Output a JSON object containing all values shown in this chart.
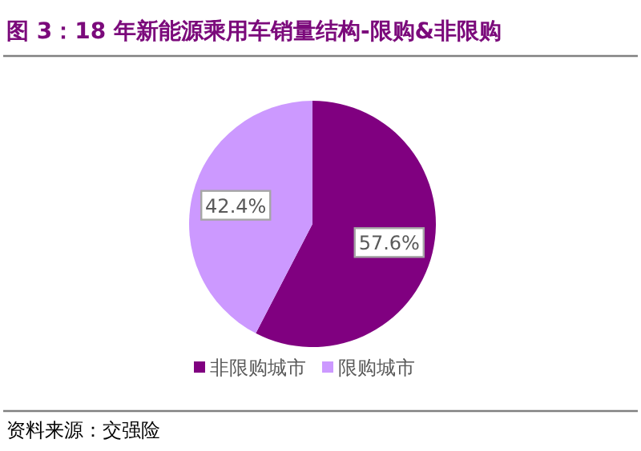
{
  "chart_data": {
    "type": "pie",
    "title": "图 3：18 年新能源乘用车销量结构-限购&非限购",
    "categories": [
      "非限购城市",
      "限购城市"
    ],
    "values": [
      57.6,
      42.4
    ],
    "colors": [
      "#800080",
      "#cc99ff"
    ],
    "value_labels": [
      "57.6%",
      "42.4%"
    ],
    "legend": "bottom",
    "annotations": [
      "资料来源：交强险"
    ]
  }
}
